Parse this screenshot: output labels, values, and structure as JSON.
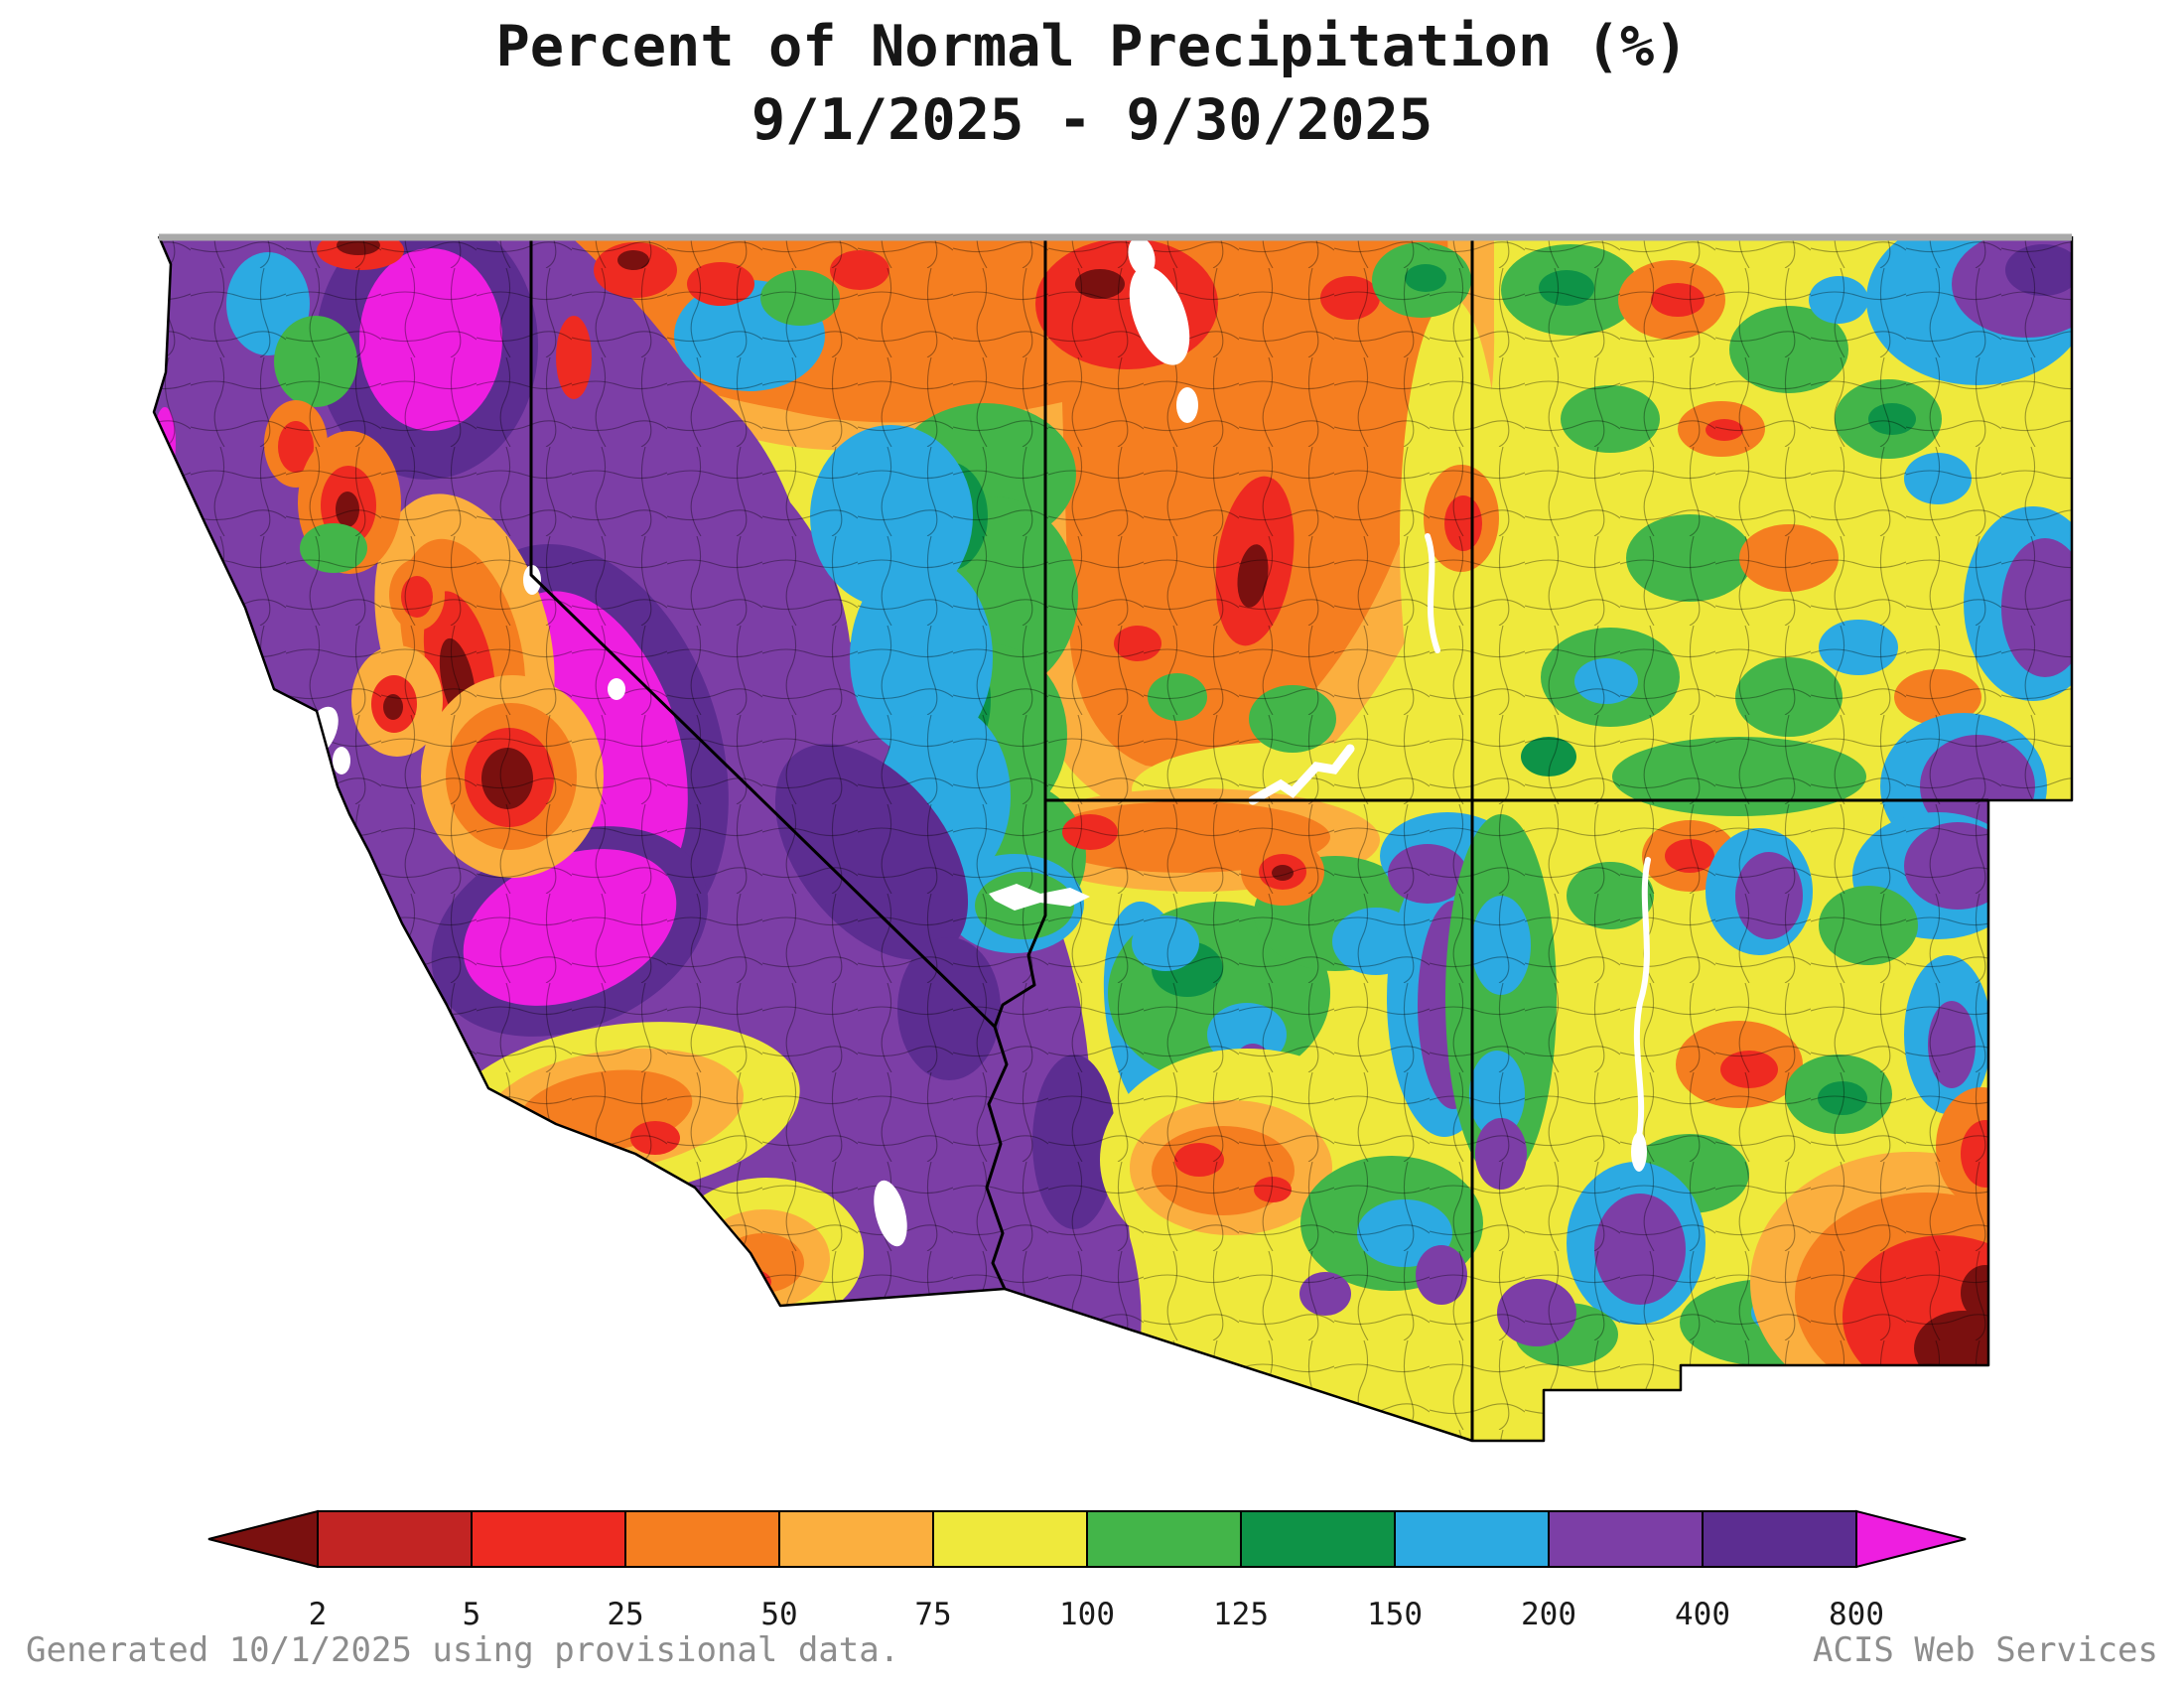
{
  "title": {
    "line1": "Percent of Normal Precipitation (%)",
    "line2": "9/1/2025 - 9/30/2025"
  },
  "map": {
    "region": "Southwestern United States",
    "states_shown": [
      "California",
      "Nevada",
      "Utah",
      "Colorado",
      "Arizona",
      "New Mexico"
    ],
    "unit": "% of normal precipitation"
  },
  "legend": {
    "boundaries": [
      "2",
      "5",
      "25",
      "50",
      "75",
      "100",
      "125",
      "150",
      "200",
      "400",
      "800"
    ],
    "segments": [
      {
        "range": "< 2",
        "color": "#7a100f"
      },
      {
        "range": "2-5",
        "color": "#c22423"
      },
      {
        "range": "5-25",
        "color": "#ee2a21"
      },
      {
        "range": "25-50",
        "color": "#f57e20"
      },
      {
        "range": "50-75",
        "color": "#fbaf3f"
      },
      {
        "range": "75-100",
        "color": "#efe93c"
      },
      {
        "range": "100-125",
        "color": "#43b549"
      },
      {
        "range": "125-150",
        "color": "#0e9347"
      },
      {
        "range": "150-200",
        "color": "#2caae2"
      },
      {
        "range": "200-400",
        "color": "#7c3ea6"
      },
      {
        "range": "400-800",
        "color": "#5c2d91"
      },
      {
        "range": "> 800",
        "color": "#ee1ee0"
      }
    ]
  },
  "footer": {
    "generated": "Generated 10/1/2025 using provisional data.",
    "service": "ACIS Web Services"
  }
}
